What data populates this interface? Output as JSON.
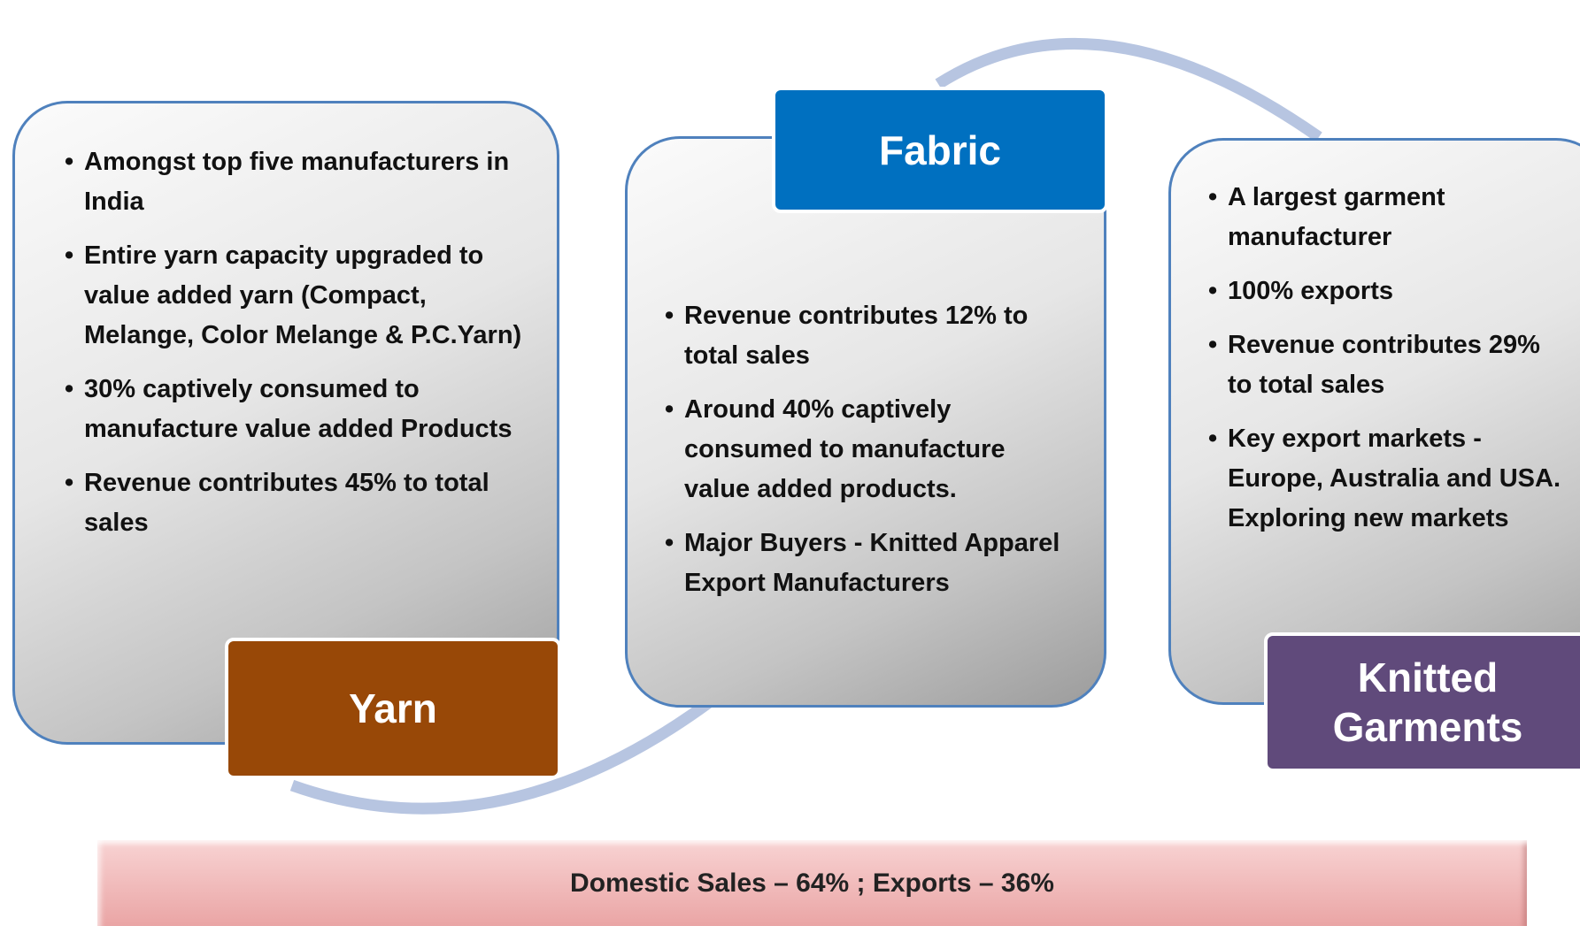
{
  "panels": [
    {
      "label": "Yarn",
      "bullets": [
        "Amongst top five manufacturers in India",
        "Entire yarn capacity upgraded to value added yarn   (Compact, Melange, Color Melange & P.C.Yarn)",
        "30%  captively  consumed to manufacture value added Products",
        "Revenue contributes 45% to total sales"
      ]
    },
    {
      "label": "Fabric",
      "bullets": [
        "Revenue contributes  12% to  total sales",
        "Around 40%  captively consumed to manufacture value added products.",
        "Major Buyers - Knitted Apparel Export Manufacturers"
      ]
    },
    {
      "label": "Knitted Garments",
      "bullets": [
        "A largest garment manufacturer",
        "100% exports",
        "Revenue contributes 29% to total sales",
        "Key export markets - Europe, Australia and USA. Exploring new markets"
      ]
    }
  ],
  "footer": "Domestic Sales – 64% ; Exports – 36%"
}
